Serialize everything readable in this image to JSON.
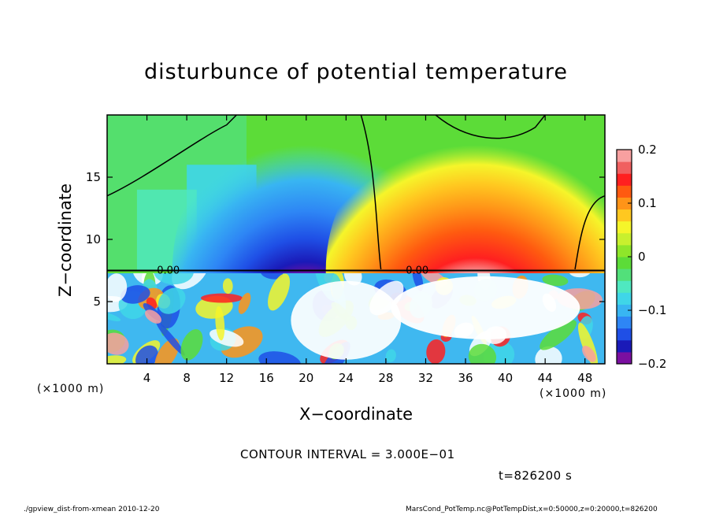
{
  "chart_data": {
    "type": "heatmap",
    "title": "disturbunce of potential temperature",
    "xlabel": "X−coordinate",
    "ylabel": "Z−coordinate",
    "x_unit": "(×1000 m)",
    "z_unit": "(×1000 m)",
    "xlim": [
      0,
      50
    ],
    "ylim": [
      0,
      20
    ],
    "x_ticks": [
      "4",
      "8",
      "12",
      "16",
      "20",
      "24",
      "28",
      "32",
      "36",
      "40",
      "44",
      "48"
    ],
    "y_ticks": [
      "5",
      "10",
      "15"
    ],
    "colorbar": {
      "range": [
        -0.2,
        0.2
      ],
      "tick_labels": [
        "0.2",
        "0.1",
        "0",
        "−0.1",
        "−0.2"
      ],
      "colors": [
        "#7a0fa0",
        "#1a1ab8",
        "#1f4fe6",
        "#2e86f5",
        "#38b5f2",
        "#3fd6e8",
        "#4fe8c0",
        "#52e07a",
        "#5cdc38",
        "#8fe62a",
        "#c8f02e",
        "#f5f52a",
        "#ffc820",
        "#ff9418",
        "#ff5a10",
        "#ff2020",
        "#f06060",
        "#f8a0a0"
      ]
    },
    "contour_interval": "CONTOUR INTERVAL = 3.000E−01",
    "contour_label": "0.00",
    "time": "t=826200 s",
    "features": [
      {
        "type": "cold-anomaly",
        "x_center": 20,
        "z_base": 7.5,
        "z_top": 19.5,
        "min_value": -0.2
      },
      {
        "type": "warm-anomaly",
        "x_center": 37,
        "z_base": 7.5,
        "z_top": 19.5,
        "max_value": 0.2
      }
    ]
  },
  "footer": {
    "left": "./gpview_dist-from-xmean  2010-12-20",
    "right": "MarsCond_PotTemp.nc@PotTempDist,x=0:50000,z=0:20000,t=826200"
  }
}
